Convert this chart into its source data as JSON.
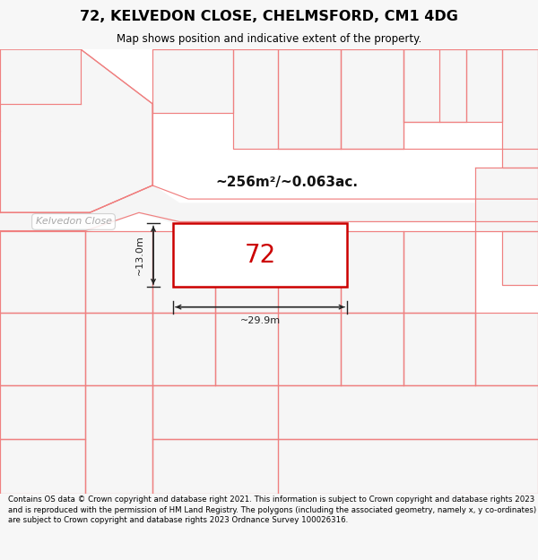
{
  "title_line1": "72, KELVEDON CLOSE, CHELMSFORD, CM1 4DG",
  "title_line2": "Map shows position and indicative extent of the property.",
  "footer_text": "Contains OS data © Crown copyright and database right 2021. This information is subject to Crown copyright and database rights 2023 and is reproduced with the permission of HM Land Registry. The polygons (including the associated geometry, namely x, y co-ordinates) are subject to Crown copyright and database rights 2023 Ordnance Survey 100026316.",
  "area_text": "~256m²/~0.063ac.",
  "label_width": "~29.9m",
  "label_height": "~13.0m",
  "property_number": "72",
  "bg_color": "#f7f7f7",
  "map_bg": "#ffffff",
  "road_line_color": "#f08080",
  "property_fill": "#ffffff",
  "property_edge": "#cc0000",
  "dim_line_color": "#222222",
  "title_color": "#000000",
  "footer_color": "#000000"
}
